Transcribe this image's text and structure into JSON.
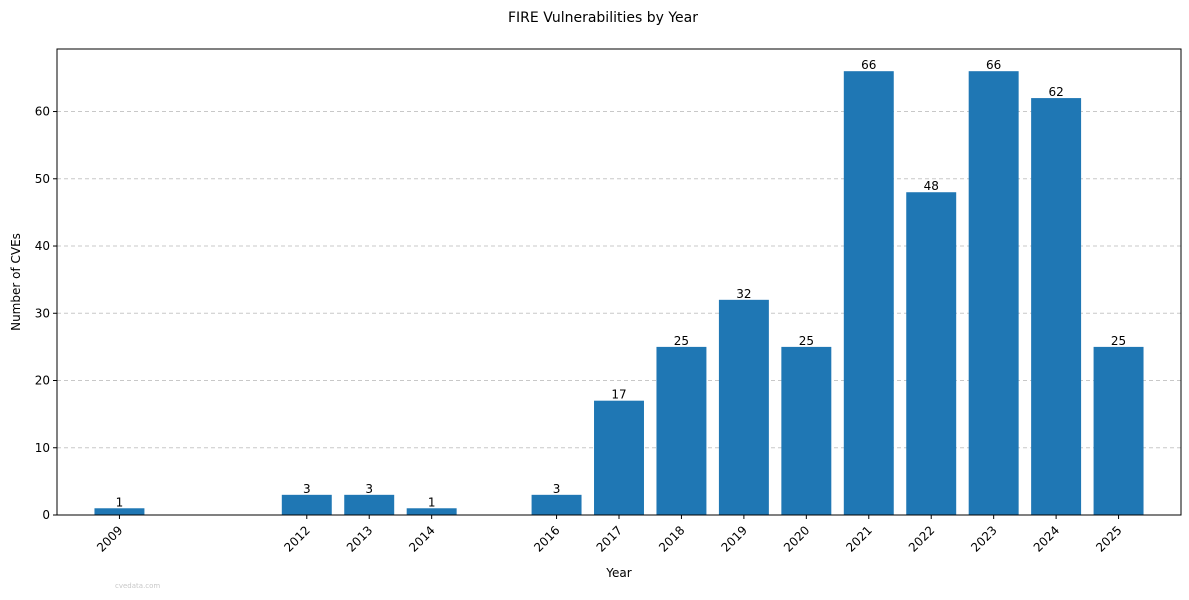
{
  "chart_data": {
    "type": "bar",
    "title": "FIRE Vulnerabilities by Year",
    "xlabel": "Year",
    "ylabel": "Number of CVEs",
    "x": [
      2009,
      2012,
      2013,
      2014,
      2016,
      2017,
      2018,
      2019,
      2020,
      2021,
      2022,
      2023,
      2024,
      2025
    ],
    "categories": [
      "2009",
      "2012",
      "2013",
      "2014",
      "2016",
      "2017",
      "2018",
      "2019",
      "2020",
      "2021",
      "2022",
      "2023",
      "2024",
      "2025"
    ],
    "values": [
      1,
      3,
      3,
      1,
      3,
      17,
      25,
      32,
      25,
      66,
      48,
      66,
      62,
      25
    ],
    "xlim": [
      2008.0,
      2026.0
    ],
    "ylim": [
      0,
      69.3
    ],
    "yticks": [
      0,
      10,
      20,
      30,
      40,
      50,
      60
    ],
    "grid": "y-dashed",
    "bar_color": "#1f77b4",
    "grid_color": "#c8c8c8",
    "watermark": "cvedata.com"
  }
}
